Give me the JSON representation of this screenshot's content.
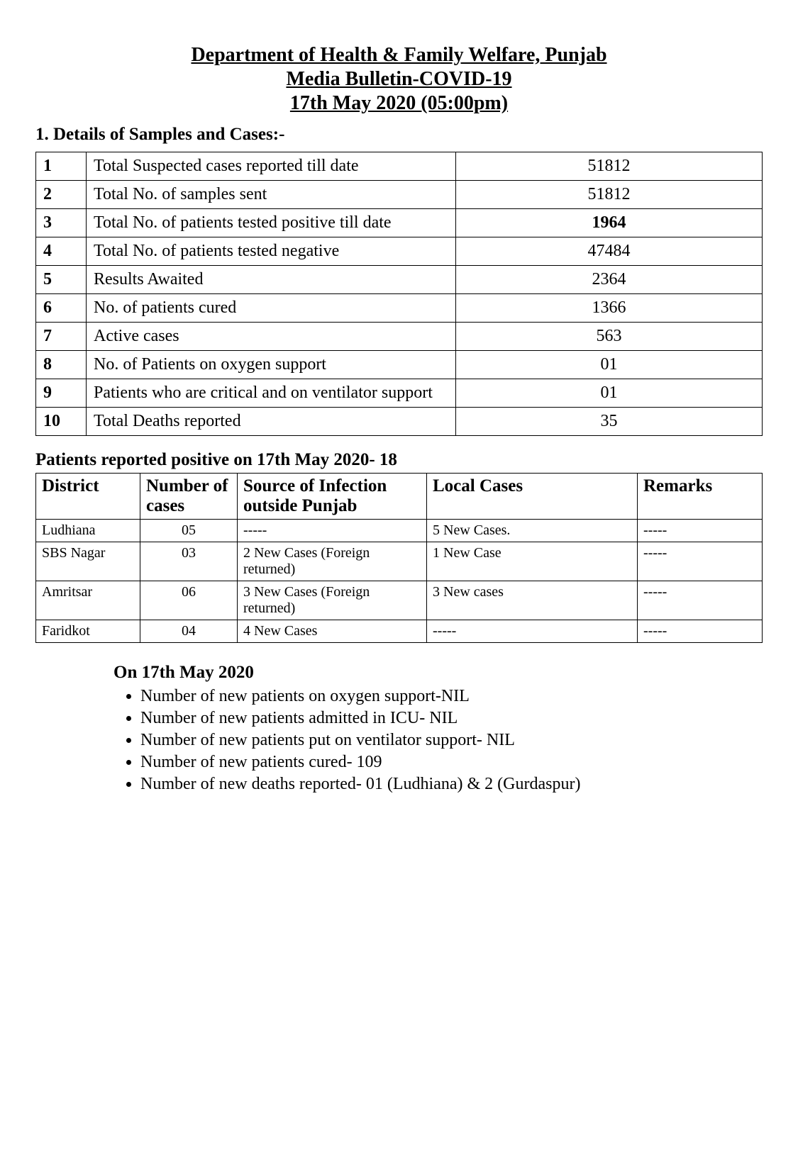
{
  "header": {
    "line1": "Department of Health & Family Welfare, Punjab",
    "line2": "Media Bulletin-COVID-19",
    "line3": "17th May 2020 (05:00pm)"
  },
  "section1": {
    "heading": "1.  Details of Samples and Cases:-",
    "rows": [
      {
        "n": "1",
        "label": "Total Suspected cases reported till date",
        "value": "51812",
        "bold": false,
        "tall": false
      },
      {
        "n": "2",
        "label": "Total No. of samples sent",
        "value": "51812",
        "bold": false,
        "tall": false
      },
      {
        "n": "3",
        "label": "Total No. of patients tested positive till date",
        "value": "1964",
        "bold": true,
        "tall": true
      },
      {
        "n": "4",
        "label": "Total No. of patients tested negative",
        "value": "47484",
        "bold": false,
        "tall": true
      },
      {
        "n": "5",
        "label": "Results Awaited",
        "value": "2364",
        "bold": false,
        "tall": false
      },
      {
        "n": "6",
        "label": "No. of patients cured",
        "value": "1366",
        "bold": false,
        "tall": false
      },
      {
        "n": "7",
        "label": "Active cases",
        "value": "563",
        "bold": false,
        "tall": false
      },
      {
        "n": "8",
        "label": "No. of Patients on oxygen support",
        "value": "01",
        "bold": false,
        "tall": false
      },
      {
        "n": "9",
        "label": "Patients who are critical and on ventilator support",
        "value": "01",
        "bold": false,
        "tall": false
      },
      {
        "n": "10",
        "label": "Total Deaths reported",
        "value": "35",
        "bold": false,
        "tall": false
      }
    ]
  },
  "section2": {
    "heading": "Patients reported positive on 17th May 2020- 18",
    "columns": {
      "district": "District",
      "num": "Number of cases",
      "src": "Source of Infection outside Punjab",
      "local": "Local Cases",
      "remarks": "Remarks"
    },
    "rows": [
      {
        "district": "Ludhiana",
        "num": "05",
        "src": "-----",
        "local": "5 New Cases.",
        "remarks": "-----"
      },
      {
        "district": "SBS Nagar",
        "num": "03",
        "src": "2  New Cases (Foreign returned)",
        "local": "1 New Case",
        "remarks": "-----"
      },
      {
        "district": "Amritsar",
        "num": "06",
        "src": "3 New Cases (Foreign returned)",
        "local": "3 New cases",
        "remarks": "-----"
      },
      {
        "district": "Faridkot",
        "num": "04",
        "src": "4 New Cases",
        "local": "-----",
        "remarks": "-----"
      }
    ]
  },
  "section3": {
    "heading": "On 17th May 2020",
    "bullets": [
      "Number of new patients on oxygen support-NIL",
      "Number of new patients admitted in ICU- NIL",
      "Number of new patients put on ventilator support- NIL",
      "Number of new patients cured- 109",
      "Number of new deaths reported-  01 (Ludhiana) & 2 (Gurdaspur)"
    ]
  }
}
